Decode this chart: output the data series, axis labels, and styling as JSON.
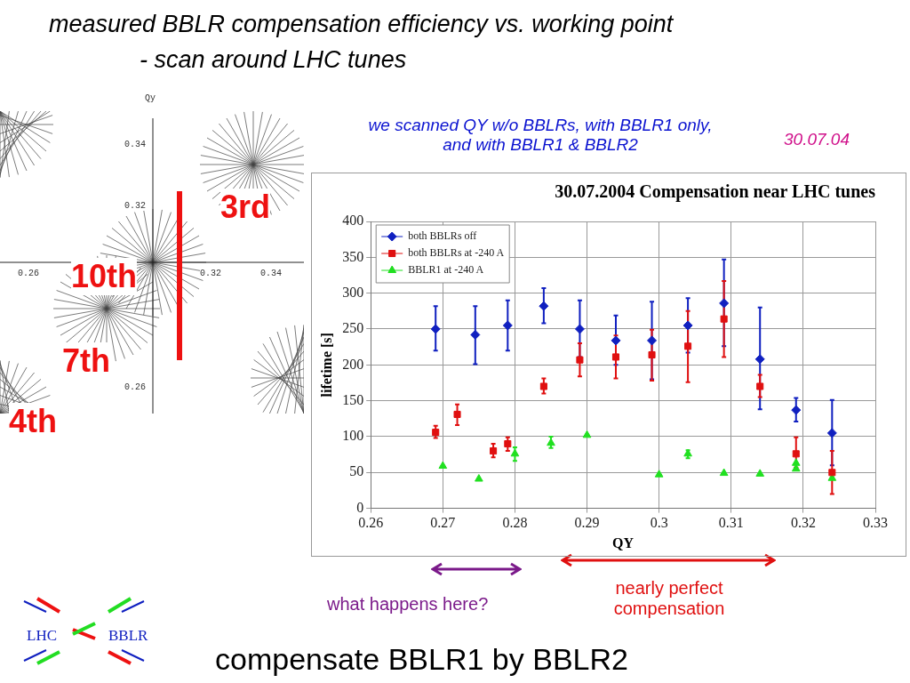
{
  "chart_data": {
    "type": "scatter",
    "title": "30.07.2004 Compensation near LHC tunes",
    "xlabel": "QY",
    "ylabel": "lifetime [s]",
    "xlim": [
      0.26,
      0.33
    ],
    "xticks": [
      0.26,
      0.27,
      0.28,
      0.29,
      0.3,
      0.31,
      0.32,
      0.33
    ],
    "ylim": [
      0,
      400
    ],
    "yticks": [
      0,
      50,
      100,
      150,
      200,
      250,
      300,
      350,
      400
    ],
    "grid": true,
    "legend": "top left",
    "series": [
      {
        "name": "both BBLRs off",
        "color": "#1020c0",
        "marker": "diamond",
        "x": [
          0.269,
          0.2745,
          0.279,
          0.284,
          0.289,
          0.294,
          0.299,
          0.304,
          0.309,
          0.314,
          0.319,
          0.324
        ],
        "values": [
          250,
          242,
          255,
          282,
          250,
          234,
          234,
          255,
          286,
          208,
          137,
          105
        ],
        "errors": [
          [
            220,
            282
          ],
          [
            201,
            282
          ],
          [
            220,
            290
          ],
          [
            258,
            307
          ],
          [
            211,
            290
          ],
          [
            200,
            269
          ],
          [
            180,
            288
          ],
          [
            217,
            293
          ],
          [
            226,
            347
          ],
          [
            138,
            280
          ],
          [
            121,
            154
          ],
          [
            60,
            151
          ]
        ]
      },
      {
        "name": "both BBLRs at -240 A",
        "color": "#e01010",
        "marker": "square",
        "x": [
          0.269,
          0.272,
          0.277,
          0.279,
          0.284,
          0.289,
          0.294,
          0.299,
          0.304,
          0.309,
          0.314,
          0.319,
          0.324
        ],
        "values": [
          106,
          131,
          80,
          90,
          170,
          207,
          211,
          214,
          226,
          264,
          170,
          76,
          50
        ],
        "errors": [
          [
            98,
            115
          ],
          [
            116,
            145
          ],
          [
            71,
            90
          ],
          [
            80,
            99
          ],
          [
            160,
            181
          ],
          [
            184,
            230
          ],
          [
            181,
            241
          ],
          [
            178,
            249
          ],
          [
            176,
            275
          ],
          [
            211,
            317
          ],
          [
            155,
            186
          ],
          [
            57,
            99
          ],
          [
            20,
            80
          ]
        ]
      },
      {
        "name": "BBLR1 at -240 A",
        "color": "#20e020",
        "marker": "triangle",
        "x": [
          0.27,
          0.275,
          0.28,
          0.285,
          0.29,
          0.3,
          0.304,
          0.309,
          0.314,
          0.319,
          0.319,
          0.324
        ],
        "values": [
          59,
          41,
          76,
          91,
          102,
          47,
          76,
          49,
          48,
          55,
          63,
          42
        ],
        "errors": [
          null,
          null,
          [
            66,
            85
          ],
          [
            84,
            100
          ],
          null,
          null,
          [
            70,
            81
          ],
          null,
          null,
          null,
          null,
          null
        ]
      }
    ],
    "annotations": [
      "measured BBLR compensation efficiency vs. working point",
      "- scan around LHC tunes",
      "we scanned QY w/o BBLRs, with BBLR1 only, and with BBLR1 & BBLR2",
      "30.07.04",
      "what happens here?",
      "nearly perfect compensation",
      "compensate BBLR1 by BBLR2",
      "3rd",
      "10th",
      "7th",
      "4th",
      "Qy",
      "0.34",
      "0.32",
      "0.26",
      "0.32",
      "0.34",
      "0.26",
      "LHC",
      "BBLR"
    ]
  }
}
